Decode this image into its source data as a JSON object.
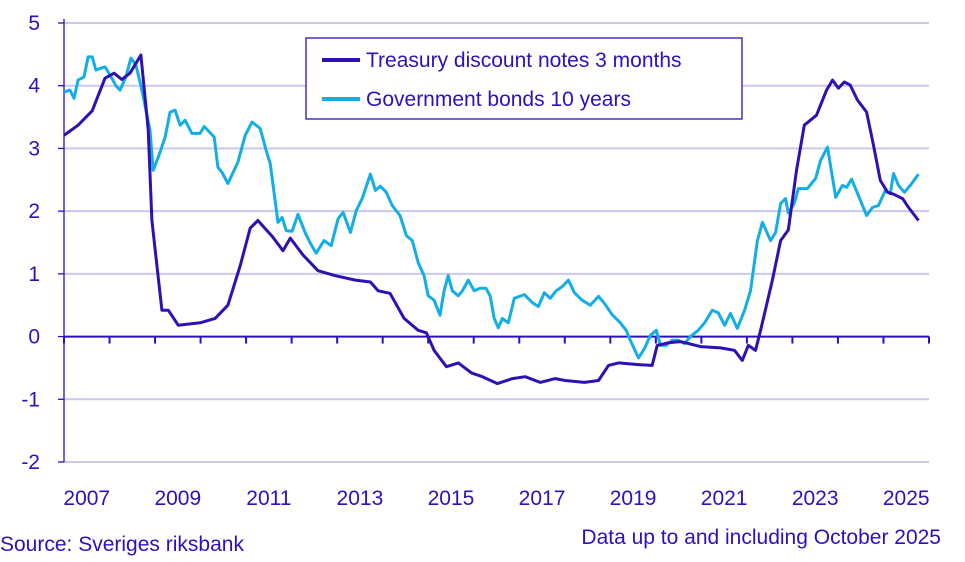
{
  "chart_data": {
    "type": "line",
    "title": "",
    "xlabel": "",
    "ylabel": "",
    "xlim": [
      2007,
      2026
    ],
    "ylim": [
      -2,
      5
    ],
    "yticks": [
      -2,
      -1,
      0,
      1,
      2,
      3,
      4,
      5
    ],
    "xtick_labels": [
      "2007",
      "2009",
      "2011",
      "2013",
      "2015",
      "2017",
      "2019",
      "2021",
      "2023",
      "2025"
    ],
    "grid": "horizontal",
    "legend_position": "top-center",
    "colors": {
      "text": "#2a12bf",
      "grid": "#c9c9e9",
      "axis": "#2a12bf"
    },
    "series": [
      {
        "name": "Treasury discount notes 3 months",
        "color": "#2e10b5",
        "x": [
          2007.0,
          2007.31,
          2007.62,
          2007.9,
          2008.1,
          2008.27,
          2008.45,
          2008.69,
          2008.85,
          2008.93,
          2009.15,
          2009.29,
          2009.51,
          2009.99,
          2010.32,
          2010.6,
          2010.87,
          2011.09,
          2011.26,
          2011.57,
          2011.81,
          2011.97,
          2012.25,
          2012.58,
          2012.96,
          2013.4,
          2013.73,
          2013.9,
          2014.16,
          2014.47,
          2014.78,
          2014.96,
          2015.13,
          2015.4,
          2015.66,
          2015.95,
          2016.19,
          2016.52,
          2016.85,
          2017.13,
          2017.46,
          2017.79,
          2018.01,
          2018.43,
          2018.74,
          2018.96,
          2019.18,
          2019.66,
          2019.92,
          2020.03,
          2020.27,
          2020.54,
          2020.98,
          2021.42,
          2021.73,
          2021.9,
          2022.03,
          2022.19,
          2022.3,
          2022.56,
          2022.74,
          2022.91,
          2023.09,
          2023.26,
          2023.53,
          2023.75,
          2023.88,
          2024.01,
          2024.14,
          2024.27,
          2024.43,
          2024.63,
          2024.78,
          2024.93,
          2025.09,
          2025.22,
          2025.42,
          2025.55,
          2025.77
        ],
        "y": [
          3.21,
          3.37,
          3.6,
          4.12,
          4.2,
          4.1,
          4.2,
          4.49,
          3.3,
          1.85,
          0.42,
          0.42,
          0.18,
          0.22,
          0.29,
          0.5,
          1.13,
          1.73,
          1.85,
          1.6,
          1.37,
          1.57,
          1.3,
          1.05,
          0.97,
          0.9,
          0.87,
          0.73,
          0.69,
          0.29,
          0.1,
          0.06,
          -0.22,
          -0.48,
          -0.42,
          -0.58,
          -0.64,
          -0.75,
          -0.67,
          -0.64,
          -0.73,
          -0.67,
          -0.7,
          -0.73,
          -0.7,
          -0.46,
          -0.42,
          -0.45,
          -0.46,
          -0.14,
          -0.1,
          -0.08,
          -0.16,
          -0.18,
          -0.22,
          -0.38,
          -0.14,
          -0.22,
          0.1,
          0.9,
          1.53,
          1.7,
          2.65,
          3.37,
          3.53,
          3.93,
          4.09,
          3.96,
          4.06,
          4.01,
          3.77,
          3.58,
          3.05,
          2.49,
          2.3,
          2.27,
          2.2,
          2.06,
          1.85
        ]
      },
      {
        "name": "Government bonds 10 years",
        "color": "#14aee6",
        "x": [
          2007.0,
          2007.13,
          2007.22,
          2007.31,
          2007.44,
          2007.53,
          2007.62,
          2007.7,
          2007.81,
          2007.9,
          2007.97,
          2008.14,
          2008.23,
          2008.36,
          2008.47,
          2008.58,
          2008.71,
          2008.89,
          2008.96,
          2009.11,
          2009.22,
          2009.33,
          2009.44,
          2009.55,
          2009.66,
          2009.81,
          2009.99,
          2010.08,
          2010.3,
          2010.38,
          2010.47,
          2010.6,
          2010.82,
          2010.98,
          2011.13,
          2011.31,
          2011.44,
          2011.53,
          2011.7,
          2011.79,
          2011.88,
          2012.01,
          2012.14,
          2012.3,
          2012.41,
          2012.54,
          2012.71,
          2012.87,
          2013.02,
          2013.13,
          2013.29,
          2013.42,
          2013.55,
          2013.73,
          2013.84,
          2013.95,
          2014.08,
          2014.21,
          2014.38,
          2014.52,
          2014.65,
          2014.78,
          2014.91,
          2015.0,
          2015.13,
          2015.26,
          2015.35,
          2015.44,
          2015.53,
          2015.66,
          2015.75,
          2015.88,
          2016.01,
          2016.14,
          2016.27,
          2016.36,
          2016.45,
          2016.54,
          2016.63,
          2016.76,
          2016.89,
          2017.11,
          2017.29,
          2017.42,
          2017.55,
          2017.68,
          2017.81,
          2017.95,
          2018.08,
          2018.21,
          2018.38,
          2018.56,
          2018.74,
          2018.87,
          2019.04,
          2019.22,
          2019.35,
          2019.44,
          2019.62,
          2019.75,
          2019.88,
          2020.01,
          2020.1,
          2020.23,
          2020.36,
          2020.49,
          2020.63,
          2020.76,
          2020.93,
          2021.07,
          2021.24,
          2021.37,
          2021.51,
          2021.64,
          2021.79,
          2021.95,
          2022.08,
          2022.23,
          2022.34,
          2022.52,
          2022.63,
          2022.74,
          2022.85,
          2022.91,
          2023.04,
          2023.13,
          2023.33,
          2023.51,
          2023.62,
          2023.77,
          2023.95,
          2024.1,
          2024.19,
          2024.3,
          2024.45,
          2024.63,
          2024.76,
          2024.89,
          2025.04,
          2025.15,
          2025.22,
          2025.33,
          2025.46,
          2025.59,
          2025.77
        ],
        "y": [
          3.9,
          3.93,
          3.8,
          4.09,
          4.14,
          4.46,
          4.46,
          4.25,
          4.28,
          4.3,
          4.22,
          4.0,
          3.93,
          4.14,
          4.44,
          4.33,
          3.93,
          3.29,
          2.65,
          2.94,
          3.18,
          3.58,
          3.61,
          3.37,
          3.45,
          3.24,
          3.24,
          3.35,
          3.18,
          2.7,
          2.62,
          2.44,
          2.78,
          3.21,
          3.42,
          3.32,
          2.97,
          2.76,
          1.82,
          1.9,
          1.69,
          1.68,
          1.95,
          1.65,
          1.49,
          1.33,
          1.53,
          1.45,
          1.88,
          1.98,
          1.66,
          2.01,
          2.2,
          2.59,
          2.33,
          2.4,
          2.3,
          2.09,
          1.93,
          1.61,
          1.53,
          1.18,
          0.97,
          0.65,
          0.58,
          0.34,
          0.73,
          0.97,
          0.73,
          0.65,
          0.73,
          0.9,
          0.73,
          0.77,
          0.77,
          0.65,
          0.29,
          0.14,
          0.29,
          0.22,
          0.61,
          0.67,
          0.54,
          0.48,
          0.7,
          0.61,
          0.73,
          0.8,
          0.9,
          0.7,
          0.58,
          0.5,
          0.64,
          0.53,
          0.35,
          0.22,
          0.1,
          -0.06,
          -0.34,
          -0.19,
          0.02,
          0.1,
          -0.14,
          -0.14,
          -0.06,
          -0.06,
          -0.11,
          0.0,
          0.1,
          0.22,
          0.42,
          0.38,
          0.18,
          0.37,
          0.13,
          0.42,
          0.73,
          1.53,
          1.82,
          1.53,
          1.66,
          2.12,
          2.2,
          1.97,
          2.12,
          2.36,
          2.36,
          2.52,
          2.81,
          3.02,
          2.22,
          2.41,
          2.38,
          2.51,
          2.25,
          1.93,
          2.06,
          2.09,
          2.33,
          2.28,
          2.6,
          2.41,
          2.3,
          2.41,
          2.59
        ]
      }
    ]
  },
  "footer": {
    "source": "Source: Sveriges riksbank",
    "note": "Data up to and including October 2025"
  }
}
